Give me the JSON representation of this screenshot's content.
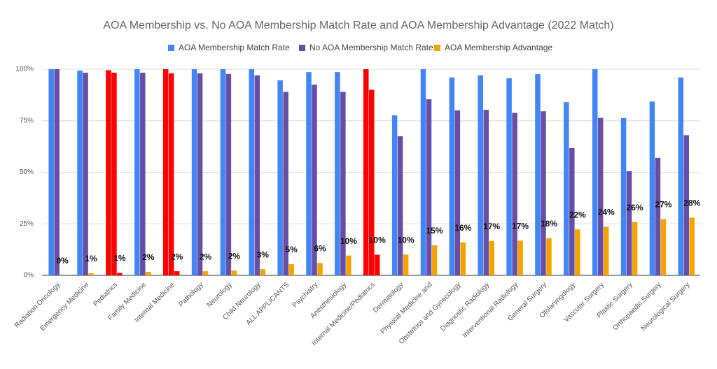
{
  "chart_data": {
    "type": "bar",
    "title": "AOA Membership vs. No AOA Membership Match Rate and AOA Membership Advantage (2022 Match)",
    "categories": [
      "Radiation Oncology",
      "Emergency Medicine",
      "Pediatrics",
      "Family Medicine",
      "Internal Medicine",
      "Pathology",
      "Neurology",
      "Child Neurology",
      "ALL APPLICANTS",
      "Psychiatry",
      "Anesthesiology",
      "Internal Medicine/Pediatrics",
      "Dermatology",
      "Physical Medicine and",
      "Obstetrics and Gynecology",
      "Diagnostic Radiology",
      "Interventional Radiology",
      "General Surgery",
      "Otolaryngology",
      "Vascular Surgery",
      "Plastic Surgery",
      "Orthopaedic Surgery",
      "Neurological Surgery"
    ],
    "series": [
      {
        "name": "AOA Membership Match Rate",
        "color": "#4285f4",
        "values": [
          100,
          99.3,
          99.5,
          100,
          100,
          100,
          100,
          100,
          94.6,
          98.6,
          98.6,
          100,
          77.6,
          100,
          96,
          97,
          95.6,
          97.6,
          84,
          100,
          76.3,
          84.3,
          96
        ],
        "colors": [
          "#4285f4",
          "#4285f4",
          "#ff0000",
          "#4285f4",
          "#ff0000",
          "#4285f4",
          "#4285f4",
          "#4285f4",
          "#4285f4",
          "#4285f4",
          "#4285f4",
          "#ff0000",
          "#4285f4",
          "#4285f4",
          "#4285f4",
          "#4285f4",
          "#4285f4",
          "#4285f4",
          "#4285f4",
          "#4285f4",
          "#4285f4",
          "#4285f4",
          "#4285f4"
        ]
      },
      {
        "name": "No AOA Membership Match Rate",
        "color": "#674ea7",
        "values": [
          100,
          98.3,
          98.3,
          98.3,
          98,
          98,
          97.7,
          97,
          89,
          92.5,
          89,
          90,
          67.5,
          85.4,
          80,
          80.3,
          78.8,
          79.6,
          61.7,
          76.4,
          50.5,
          57,
          68
        ],
        "colors": [
          "#674ea7",
          "#674ea7",
          "#ff0000",
          "#674ea7",
          "#ff0000",
          "#674ea7",
          "#674ea7",
          "#674ea7",
          "#674ea7",
          "#674ea7",
          "#674ea7",
          "#ff0000",
          "#674ea7",
          "#674ea7",
          "#674ea7",
          "#674ea7",
          "#674ea7",
          "#674ea7",
          "#674ea7",
          "#674ea7",
          "#674ea7",
          "#674ea7",
          "#674ea7"
        ]
      },
      {
        "name": "AOA Membership Advantage",
        "color": "#f5a300",
        "values": [
          0,
          1,
          1.2,
          1.7,
          2,
          2,
          2.3,
          3,
          5.4,
          6,
          9.6,
          10,
          10.1,
          14.6,
          16,
          16.7,
          16.8,
          18,
          22.3,
          23.6,
          25.8,
          27.3,
          28
        ],
        "value_labels": [
          "0%",
          "1%",
          "1%",
          "2%",
          "2%",
          "2%",
          "2%",
          "3%",
          "5%",
          "6%",
          "10%",
          "10%",
          "10%",
          "15%",
          "16%",
          "17%",
          "17%",
          "18%",
          "22%",
          "24%",
          "26%",
          "27%",
          "28%"
        ],
        "colors": [
          "#f5a300",
          "#f5a300",
          "#ff0000",
          "#f5a300",
          "#ff0000",
          "#f5a300",
          "#f5a300",
          "#f5a300",
          "#f5a300",
          "#f5a300",
          "#f5a300",
          "#ff0000",
          "#f5a300",
          "#f5a300",
          "#f5a300",
          "#f5a300",
          "#f5a300",
          "#f5a300",
          "#f5a300",
          "#f5a300",
          "#f5a300",
          "#f5a300",
          "#f5a300"
        ]
      }
    ],
    "ylim": [
      0,
      100
    ],
    "yticks": [
      {
        "value": 0,
        "label": "0%"
      },
      {
        "value": 25,
        "label": "25%"
      },
      {
        "value": 50,
        "label": "50%"
      },
      {
        "value": 75,
        "label": "75%"
      },
      {
        "value": 100,
        "label": "100%"
      }
    ],
    "grid": true,
    "legend": "top"
  }
}
